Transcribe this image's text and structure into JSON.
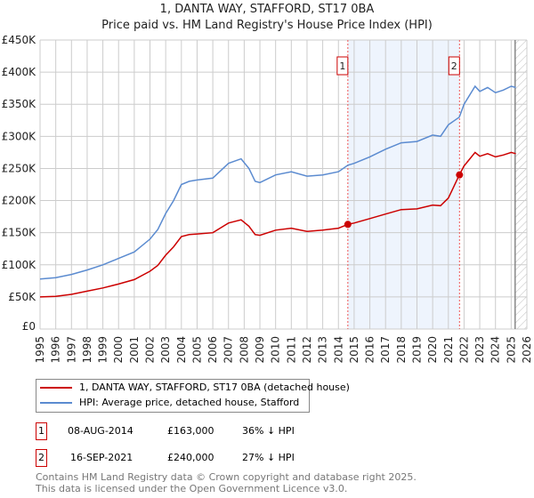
{
  "title": "1, DANTA WAY, STAFFORD, ST17 0BA",
  "subtitle": "Price paid vs. HM Land Registry's House Price Index (HPI)",
  "chart_data": {
    "type": "line",
    "title": "1, DANTA WAY, STAFFORD, ST17 0BA",
    "subtitle": "Price paid vs. HM Land Registry's House Price Index (HPI)",
    "xlim": [
      1995,
      2026
    ],
    "ylim": [
      0,
      450000
    ],
    "y_ticks": [
      0,
      50000,
      100000,
      150000,
      200000,
      250000,
      300000,
      350000,
      400000,
      450000
    ],
    "y_tick_labels": [
      "£0",
      "£50K",
      "£100K",
      "£150K",
      "£200K",
      "£250K",
      "£300K",
      "£350K",
      "£400K",
      "£450K"
    ],
    "x_ticks": [
      "1995",
      "1996",
      "1997",
      "1998",
      "1999",
      "2000",
      "2001",
      "2002",
      "2003",
      "2004",
      "2005",
      "2006",
      "2007",
      "2008",
      "2009",
      "2010",
      "2011",
      "2012",
      "2013",
      "2014",
      "2015",
      "2016",
      "2017",
      "2018",
      "2019",
      "2020",
      "2021",
      "2022",
      "2023",
      "2024",
      "2025",
      "2026"
    ],
    "grid": true,
    "shaded_range": [
      2014.6,
      2021.71
    ],
    "hatched_from": 2025.25,
    "series": [
      {
        "name": "HPI: Average price, detached house, Stafford",
        "color": "#5b8bd0",
        "x": [
          1995,
          1996,
          1997,
          1998,
          1999,
          2000,
          2001,
          2002,
          2002.5,
          2003,
          2003.5,
          2004,
          2004.5,
          2005,
          2006,
          2007,
          2007.8,
          2008.3,
          2008.7,
          2009,
          2010,
          2011,
          2012,
          2013,
          2014,
          2014.6,
          2015,
          2016,
          2017,
          2018,
          2019,
          2020,
          2020.5,
          2021,
          2021.7,
          2022,
          2022.7,
          2023,
          2023.5,
          2024,
          2024.5,
          2025,
          2025.3
        ],
        "y": [
          78000,
          80000,
          85000,
          92000,
          100000,
          110000,
          120000,
          140000,
          155000,
          180000,
          200000,
          225000,
          230000,
          232000,
          235000,
          258000,
          265000,
          250000,
          230000,
          228000,
          240000,
          245000,
          238000,
          240000,
          245000,
          255000,
          258000,
          268000,
          280000,
          290000,
          292000,
          302000,
          300000,
          318000,
          330000,
          350000,
          378000,
          370000,
          376000,
          368000,
          372000,
          378000,
          376000
        ]
      },
      {
        "name": "1, DANTA WAY, STAFFORD, ST17 0BA (detached house)",
        "color": "#cc0000",
        "x": [
          1995,
          1996,
          1997,
          1998,
          1999,
          2000,
          2001,
          2002,
          2002.5,
          2003,
          2003.5,
          2004,
          2004.5,
          2005,
          2006,
          2007,
          2007.8,
          2008.3,
          2008.7,
          2009,
          2010,
          2011,
          2012,
          2013,
          2014,
          2014.6,
          2015,
          2016,
          2017,
          2018,
          2019,
          2020,
          2020.5,
          2021,
          2021.7,
          2022,
          2022.7,
          2023,
          2023.5,
          2024,
          2024.5,
          2025,
          2025.3
        ],
        "y": [
          50000,
          51000,
          54000,
          59000,
          64000,
          70000,
          77000,
          90000,
          99000,
          115000,
          128000,
          144000,
          147000,
          148000,
          150000,
          165000,
          170000,
          160000,
          147000,
          146000,
          154000,
          157000,
          152000,
          154000,
          157000,
          163000,
          165000,
          172000,
          179000,
          186000,
          187000,
          193000,
          192000,
          204000,
          240000,
          254000,
          275000,
          269000,
          273000,
          268000,
          271000,
          275000,
          273000
        ]
      }
    ],
    "sales": [
      {
        "label": "1",
        "x": 2014.6,
        "y": 163000
      },
      {
        "label": "2",
        "x": 2021.71,
        "y": 240000
      }
    ]
  },
  "legend": {
    "property": "1, DANTA WAY, STAFFORD, ST17 0BA (detached house)",
    "hpi": "HPI: Average price, detached house, Stafford"
  },
  "transactions": [
    {
      "num": "1",
      "date": "08-AUG-2014",
      "price": "£163,000",
      "hpi": "36% ↓ HPI"
    },
    {
      "num": "2",
      "date": "16-SEP-2021",
      "price": "£240,000",
      "hpi": "27% ↓ HPI"
    }
  ],
  "footer": [
    "Contains HM Land Registry data © Crown copyright and database right 2025.",
    "This data is licensed under the Open Government Licence v3.0."
  ]
}
